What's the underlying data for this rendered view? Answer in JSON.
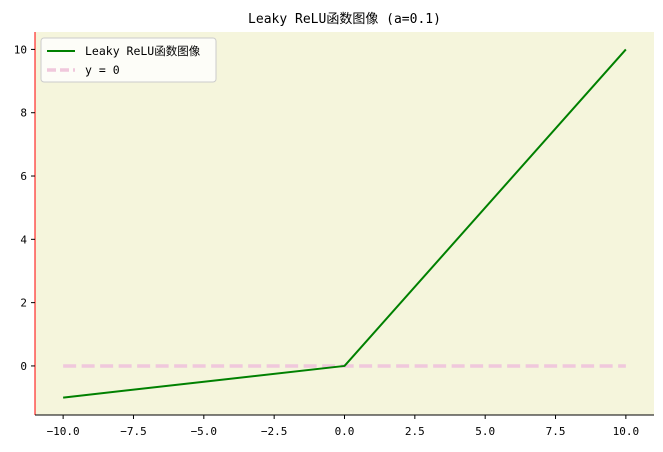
{
  "chart_data": {
    "type": "line",
    "title": "Leaky ReLU函数图像 (a=0.1)",
    "xlabel": "",
    "ylabel": "",
    "xlim": [
      -11,
      11
    ],
    "ylim": [
      -1.55,
      10.55
    ],
    "x_ticks": [
      -10.0,
      -7.5,
      -5.0,
      -2.5,
      0.0,
      2.5,
      5.0,
      7.5,
      10.0
    ],
    "x_tick_labels": [
      "−10.0",
      "−7.5",
      "−5.0",
      "−2.5",
      "0.0",
      "2.5",
      "5.0",
      "7.5",
      "10.0"
    ],
    "y_ticks": [
      0,
      2,
      4,
      6,
      8,
      10
    ],
    "y_tick_labels": [
      "0",
      "2",
      "4",
      "6",
      "8",
      "10"
    ],
    "grid": false,
    "legend": {
      "position": "top-left"
    },
    "background_color": "#f5f5dc",
    "left_spine_color": "#ff0000",
    "series": [
      {
        "name": "Leaky ReLU函数图像",
        "color": "#008000",
        "style": "solid",
        "x": [
          -10,
          0,
          10
        ],
        "y": [
          -1,
          0,
          10
        ]
      },
      {
        "name": "y = 0",
        "color": "#f0c8dc",
        "style": "dashed",
        "x": [
          -10,
          10
        ],
        "y": [
          0,
          0
        ]
      }
    ]
  }
}
